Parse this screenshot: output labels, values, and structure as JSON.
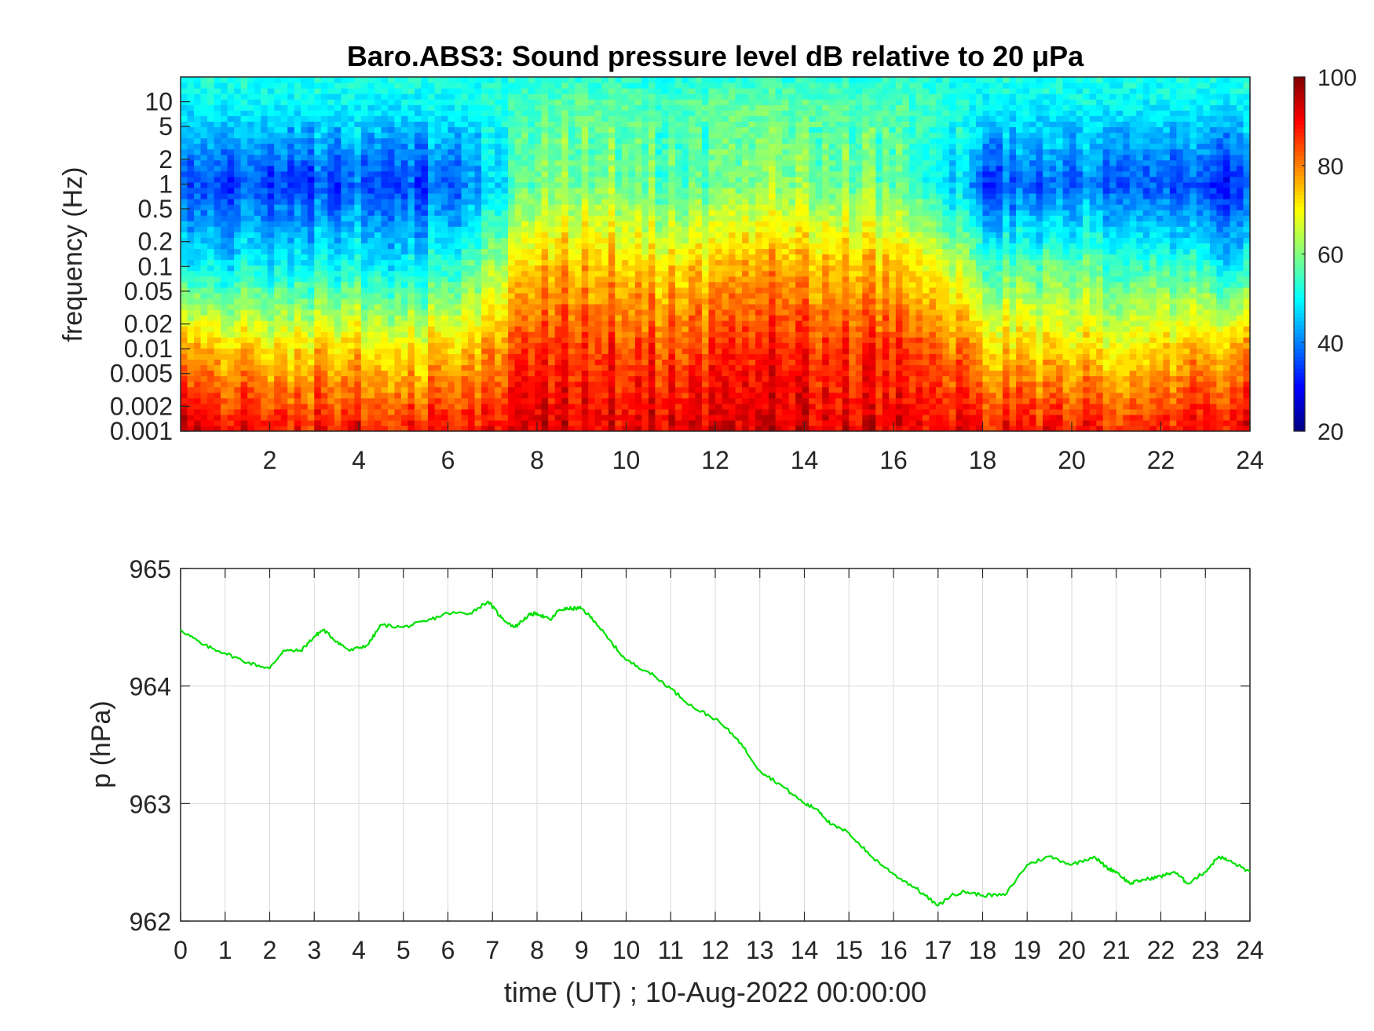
{
  "chart_data": [
    {
      "type": "heatmap",
      "title": "Baro.ABS3: Sound pressure level dB relative to 20 μPa",
      "xlabel": "",
      "ylabel": "frequency (Hz)",
      "xlim": [
        0,
        24
      ],
      "x_ticks": [
        "2",
        "4",
        "6",
        "8",
        "10",
        "12",
        "14",
        "16",
        "18",
        "20",
        "22",
        "24"
      ],
      "y_scale": "log",
      "ylim": [
        0.001,
        20
      ],
      "y_ticks": [
        "10",
        "5",
        "2",
        "1",
        "0.5",
        "0.2",
        "0.1",
        "0.05",
        "0.02",
        "0.01",
        "0.005",
        "0.002",
        "0.001"
      ],
      "colormap": "jet",
      "color_range": [
        20,
        100
      ],
      "colorbar_ticks": [
        "100",
        "80",
        "60",
        "40",
        "20"
      ],
      "time_hours": [
        0,
        1,
        2,
        3,
        4,
        5,
        6,
        7,
        8,
        9,
        10,
        11,
        12,
        13,
        14,
        15,
        16,
        17,
        18,
        19,
        20,
        21,
        22,
        23,
        24
      ],
      "level_dB_at_0.001Hz": [
        96,
        90,
        90,
        89,
        89,
        88,
        89,
        90,
        92,
        93,
        92,
        92,
        93,
        94,
        93,
        92,
        92,
        91,
        89,
        89,
        89,
        89,
        89,
        90,
        92
      ],
      "level_dB_at_0.01Hz": [
        78,
        73,
        72,
        74,
        73,
        71,
        73,
        78,
        85,
        87,
        85,
        84,
        86,
        88,
        87,
        86,
        86,
        84,
        75,
        72,
        72,
        72,
        74,
        76,
        78
      ],
      "level_dB_at_0.1Hz": [
        50,
        48,
        50,
        51,
        51,
        49,
        52,
        62,
        74,
        77,
        75,
        72,
        75,
        78,
        76,
        76,
        75,
        70,
        57,
        56,
        58,
        57,
        56,
        52,
        50
      ],
      "level_dB_at_1Hz": [
        36,
        34,
        35,
        35,
        37,
        35,
        36,
        46,
        58,
        62,
        60,
        56,
        58,
        62,
        60,
        60,
        58,
        52,
        36,
        35,
        38,
        40,
        37,
        34,
        33
      ],
      "level_dB_at_10Hz": [
        50,
        50,
        50,
        50,
        50,
        50,
        50,
        52,
        56,
        58,
        57,
        55,
        57,
        58,
        57,
        57,
        56,
        54,
        50,
        50,
        50,
        50,
        50,
        50,
        50
      ],
      "level_dB_at_20Hz": [
        52,
        52,
        52,
        52,
        52,
        52,
        52,
        52,
        53,
        53,
        53,
        52,
        53,
        53,
        53,
        53,
        53,
        52,
        52,
        52,
        52,
        52,
        52,
        52,
        52
      ]
    },
    {
      "type": "line",
      "title": "",
      "xlabel": "time (UT) ; 10-Aug-2022 00:00:00",
      "ylabel": "p (hPa)",
      "xlim": [
        0,
        24
      ],
      "ylim": [
        962,
        965
      ],
      "grid": true,
      "x_ticks": [
        "0",
        "1",
        "2",
        "3",
        "4",
        "5",
        "6",
        "7",
        "8",
        "9",
        "10",
        "11",
        "12",
        "13",
        "14",
        "15",
        "16",
        "17",
        "18",
        "19",
        "20",
        "21",
        "22",
        "23",
        "24"
      ],
      "y_ticks": [
        "965",
        "964",
        "963",
        "962"
      ],
      "color": "#00e000",
      "series": [
        {
          "x": [
            0,
            0.5,
            1,
            1.5,
            2,
            2.3,
            2.7,
            3,
            3.2,
            3.5,
            3.8,
            4.2,
            4.5,
            5,
            5.5,
            6,
            6.5,
            6.9,
            7.2,
            7.5,
            7.8,
            8,
            8.3,
            8.5,
            8.8,
            9,
            9.3,
            9.6,
            10,
            10.5,
            11,
            11.5,
            12,
            12.5,
            13,
            13.5,
            14,
            14.3,
            14.6,
            15,
            15.5,
            16,
            16.5,
            17,
            17.3,
            17.6,
            18,
            18.5,
            19,
            19.5,
            20,
            20.5,
            20.8,
            21,
            21.3,
            21.6,
            22,
            22.3,
            22.6,
            23,
            23.3,
            23.6,
            24
          ],
          "y": [
            964.48,
            964.35,
            964.28,
            964.2,
            964.15,
            964.3,
            964.3,
            964.42,
            964.48,
            964.38,
            964.3,
            964.35,
            964.52,
            964.5,
            964.55,
            964.62,
            964.62,
            964.72,
            964.58,
            964.5,
            964.6,
            964.62,
            964.56,
            964.65,
            964.66,
            964.66,
            964.55,
            964.4,
            964.22,
            964.12,
            963.98,
            963.82,
            963.72,
            963.55,
            963.28,
            963.15,
            963.0,
            962.95,
            962.82,
            962.75,
            962.55,
            962.4,
            962.28,
            962.13,
            962.22,
            962.25,
            962.22,
            962.22,
            962.48,
            962.55,
            962.48,
            962.55,
            962.45,
            962.42,
            962.32,
            962.35,
            962.38,
            962.42,
            962.32,
            962.42,
            962.55,
            962.5,
            962.42
          ]
        }
      ]
    }
  ]
}
